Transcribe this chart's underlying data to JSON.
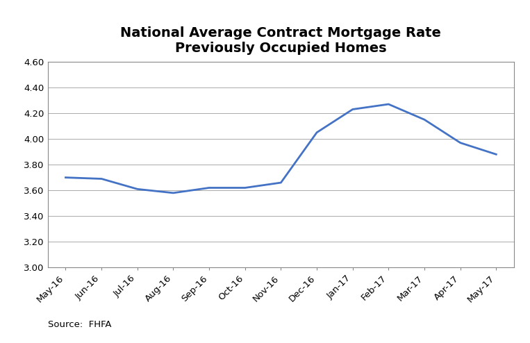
{
  "title": "National Average Contract Mortgage Rate\nPreviously Occupied Homes",
  "x_labels": [
    "May-16",
    "Jun-16",
    "Jul-16",
    "Aug-16",
    "Sep-16",
    "Oct-16",
    "Nov-16",
    "Dec-16",
    "Jan-17",
    "Feb-17",
    "Mar-17",
    "Apr-17",
    "May-17"
  ],
  "y_values": [
    3.7,
    3.69,
    3.61,
    3.58,
    3.62,
    3.62,
    3.66,
    4.05,
    4.23,
    4.27,
    4.15,
    3.97,
    3.88
  ],
  "line_color": "#4472C4",
  "line_width": 2.0,
  "ylim": [
    3.0,
    4.6
  ],
  "yticks": [
    3.0,
    3.2,
    3.4,
    3.6,
    3.8,
    4.0,
    4.2,
    4.4,
    4.6
  ],
  "grid_color": "#AAAAAA",
  "grid_linewidth": 0.7,
  "background_color": "#FFFFFF",
  "title_fontsize": 14,
  "tick_fontsize": 9.5,
  "source_text": "Source:  FHFA",
  "source_fontsize": 9.5,
  "spine_color": "#888888"
}
